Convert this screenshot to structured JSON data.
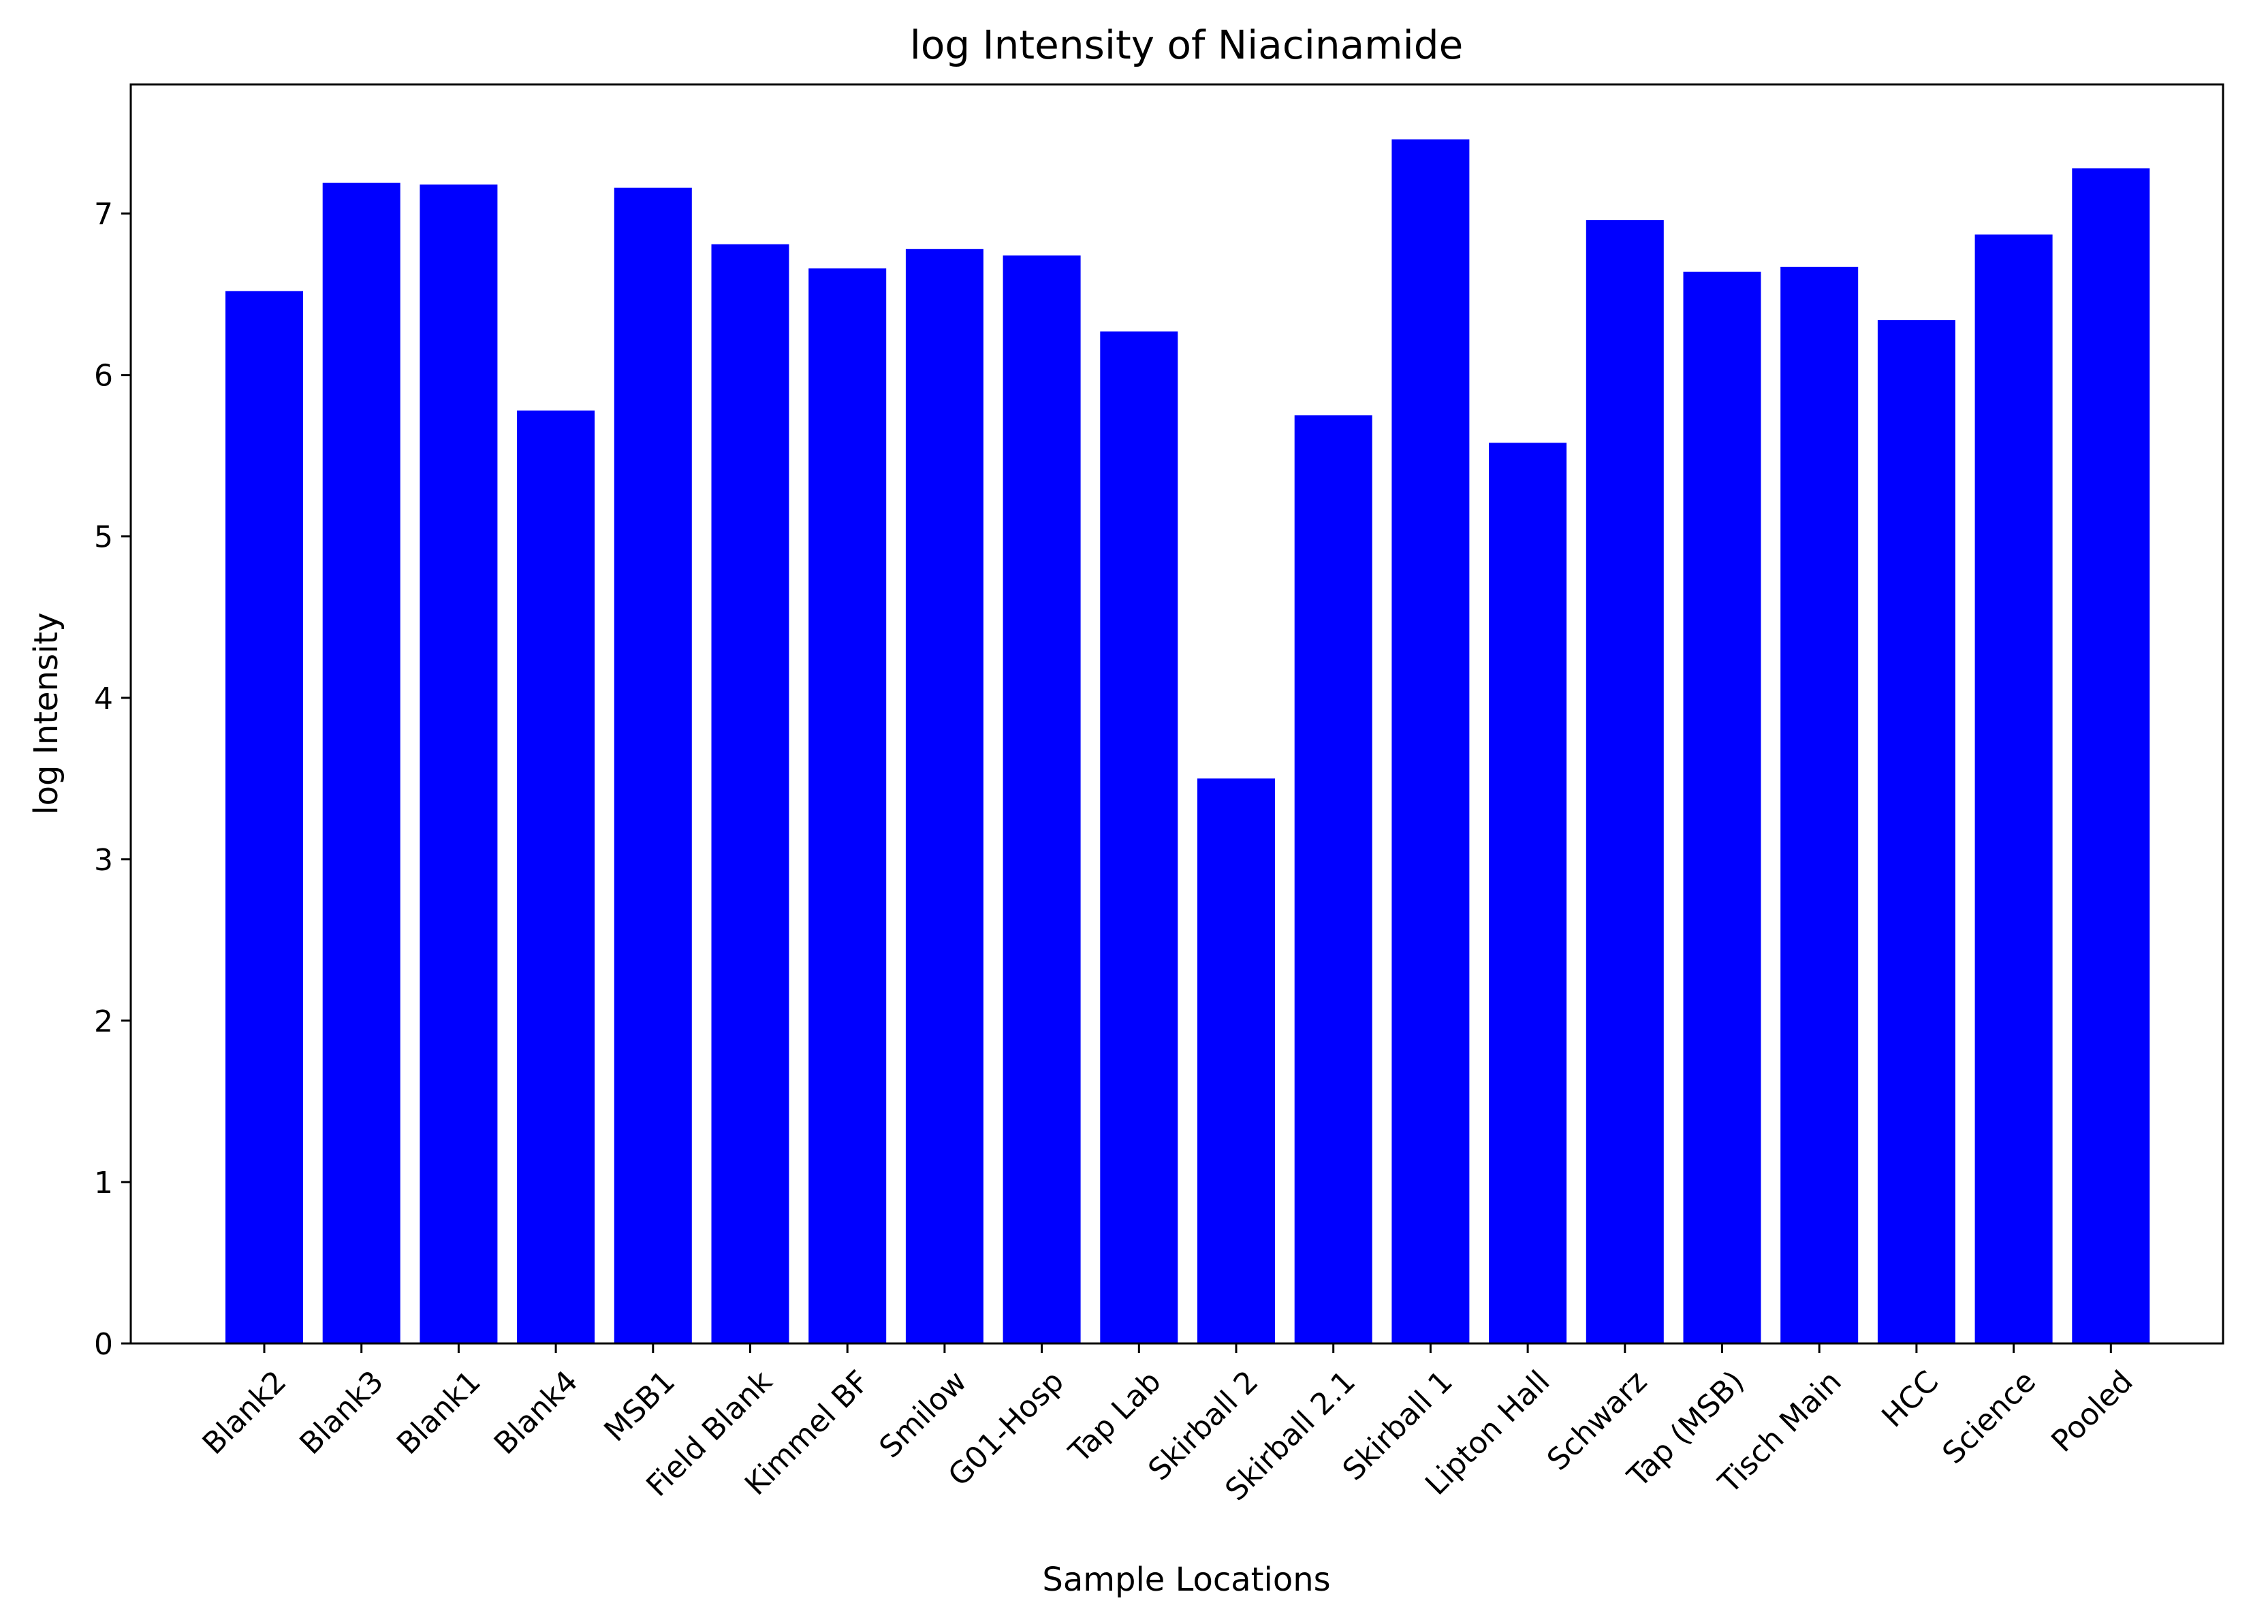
{
  "chart_data": {
    "type": "bar",
    "title": "log Intensity of Niacinamide",
    "xlabel": "Sample Locations",
    "ylabel": "log Intensity",
    "categories": [
      "Blank2",
      "Blank3",
      "Blank1",
      "Blank4",
      "MSB1",
      "Field Blank",
      "Kimmel BF",
      "Smilow",
      "G01-Hosp",
      "Tap Lab",
      "Skirball 2",
      "Skirball 2.1",
      "Skirball 1",
      "Lipton Hall",
      "Schwarz",
      "Tap (MSB)",
      "Tisch Main",
      "HCC",
      "Science",
      "Pooled"
    ],
    "values": [
      6.52,
      7.19,
      7.18,
      5.78,
      7.16,
      6.81,
      6.66,
      6.78,
      6.74,
      6.27,
      3.5,
      5.75,
      7.46,
      5.58,
      6.96,
      6.64,
      6.67,
      6.34,
      6.87,
      7.28
    ],
    "ylim": [
      0,
      7.8
    ],
    "yticks": [
      "0",
      "1",
      "2",
      "3",
      "4",
      "5",
      "6",
      "7"
    ],
    "bar_color": "#0000ff",
    "grid": false
  }
}
